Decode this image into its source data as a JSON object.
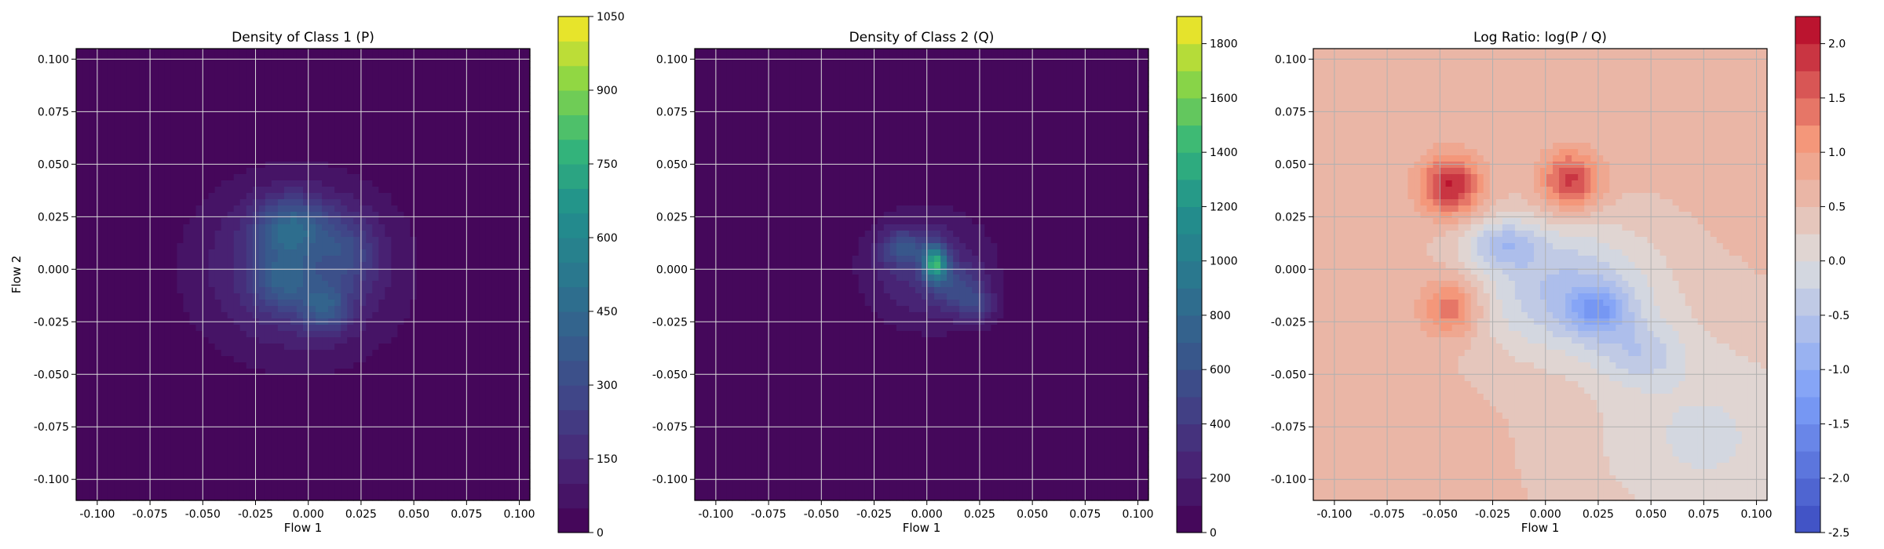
{
  "chart_data": [
    {
      "type": "heatmap",
      "title": "Density of Class 1 (P)",
      "xlabel": "Flow 1",
      "ylabel": "Flow 2",
      "xlim": [
        -0.11,
        0.105
      ],
      "ylim": [
        -0.11,
        0.105
      ],
      "xticks": [
        "-0.100",
        "-0.075",
        "-0.050",
        "-0.025",
        "0.000",
        "0.025",
        "0.050",
        "0.075",
        "0.100"
      ],
      "yticks": [
        "-0.100",
        "-0.075",
        "-0.050",
        "-0.025",
        "0.000",
        "0.025",
        "0.050",
        "0.075",
        "0.100"
      ],
      "grid": true,
      "colormap": "viridis",
      "colorbar": {
        "min": 0,
        "max": 1050,
        "ticks": [
          "0",
          "150",
          "300",
          "450",
          "600",
          "750",
          "900",
          "1050"
        ],
        "tick_values": [
          0,
          150,
          300,
          450,
          600,
          750,
          900,
          1050
        ]
      },
      "blobs": [
        {
          "x": -0.005,
          "y": 0.0,
          "sx": 0.034,
          "sy": 0.03,
          "value": 210
        },
        {
          "x": -0.008,
          "y": 0.02,
          "sx": 0.012,
          "sy": 0.01,
          "value": 300
        },
        {
          "x": -0.012,
          "y": -0.005,
          "sx": 0.01,
          "sy": 0.01,
          "value": 220
        },
        {
          "x": 0.008,
          "y": -0.018,
          "sx": 0.008,
          "sy": 0.008,
          "value": 240
        },
        {
          "x": 0.018,
          "y": 0.008,
          "sx": 0.01,
          "sy": 0.012,
          "value": 160
        }
      ]
    },
    {
      "type": "heatmap",
      "title": "Density of Class 2 (Q)",
      "xlabel": "Flow 1",
      "ylabel": "",
      "xlim": [
        -0.11,
        0.105
      ],
      "ylim": [
        -0.11,
        0.105
      ],
      "xticks": [
        "-0.100",
        "-0.075",
        "-0.050",
        "-0.025",
        "0.000",
        "0.025",
        "0.050",
        "0.075",
        "0.100"
      ],
      "yticks": [
        "-0.100",
        "-0.075",
        "-0.050",
        "-0.025",
        "0.000",
        "0.025",
        "0.050",
        "0.075",
        "0.100"
      ],
      "grid": true,
      "colormap": "viridis",
      "colorbar": {
        "min": 0,
        "max": 1900,
        "ticks": [
          "0",
          "200",
          "400",
          "600",
          "800",
          "1000",
          "1200",
          "1400",
          "1600",
          "1800"
        ],
        "tick_values": [
          0,
          200,
          400,
          600,
          800,
          1000,
          1200,
          1400,
          1600,
          1800
        ]
      },
      "blobs": [
        {
          "x": 0.0,
          "y": 0.0,
          "sx": 0.022,
          "sy": 0.02,
          "value": 330
        },
        {
          "x": 0.004,
          "y": 0.003,
          "sx": 0.004,
          "sy": 0.006,
          "value": 1100
        },
        {
          "x": -0.012,
          "y": 0.01,
          "sx": 0.007,
          "sy": 0.006,
          "value": 420
        },
        {
          "x": 0.015,
          "y": -0.01,
          "sx": 0.008,
          "sy": 0.008,
          "value": 320
        },
        {
          "x": 0.025,
          "y": -0.018,
          "sx": 0.006,
          "sy": 0.006,
          "value": 260
        }
      ]
    },
    {
      "type": "heatmap",
      "title": "Log Ratio: log(P / Q)",
      "xlabel": "Flow 1",
      "ylabel": "",
      "xlim": [
        -0.11,
        0.105
      ],
      "ylim": [
        -0.11,
        0.105
      ],
      "xticks": [
        "-0.100",
        "-0.075",
        "-0.050",
        "-0.025",
        "0.000",
        "0.025",
        "0.050",
        "0.075",
        "0.100"
      ],
      "yticks": [
        "-0.100",
        "-0.075",
        "-0.050",
        "-0.025",
        "0.000",
        "0.025",
        "0.050",
        "0.075",
        "0.100"
      ],
      "grid": true,
      "colormap": "coolwarm",
      "colorbar": {
        "min": -2.5,
        "max": 2.25,
        "ticks": [
          "-2.5",
          "-2.0",
          "-1.5",
          "-1.0",
          "-0.5",
          "0.0",
          "0.5",
          "1.0",
          "1.5",
          "2.0"
        ],
        "tick_values": [
          -2.5,
          -2.0,
          -1.5,
          -1.0,
          -0.5,
          0.0,
          0.5,
          1.0,
          1.5,
          2.0
        ]
      },
      "background_value": 0.55,
      "blobs": [
        {
          "x": 0.01,
          "y": -0.01,
          "sx": 0.03,
          "sy": 0.022,
          "value": -1.1
        },
        {
          "x": -0.02,
          "y": 0.012,
          "sx": 0.012,
          "sy": 0.008,
          "value": -0.9
        },
        {
          "x": 0.025,
          "y": -0.02,
          "sx": 0.01,
          "sy": 0.008,
          "value": -1.0
        },
        {
          "x": 0.045,
          "y": -0.04,
          "sx": 0.014,
          "sy": 0.01,
          "value": -0.6
        },
        {
          "x": -0.045,
          "y": 0.04,
          "sx": 0.01,
          "sy": 0.01,
          "value": 1.5
        },
        {
          "x": 0.012,
          "y": 0.042,
          "sx": 0.01,
          "sy": 0.01,
          "value": 1.3
        },
        {
          "x": -0.045,
          "y": -0.018,
          "sx": 0.01,
          "sy": 0.01,
          "value": 1.0
        },
        {
          "x": 0.075,
          "y": -0.08,
          "sx": 0.04,
          "sy": 0.035,
          "value": -0.6
        }
      ]
    }
  ]
}
